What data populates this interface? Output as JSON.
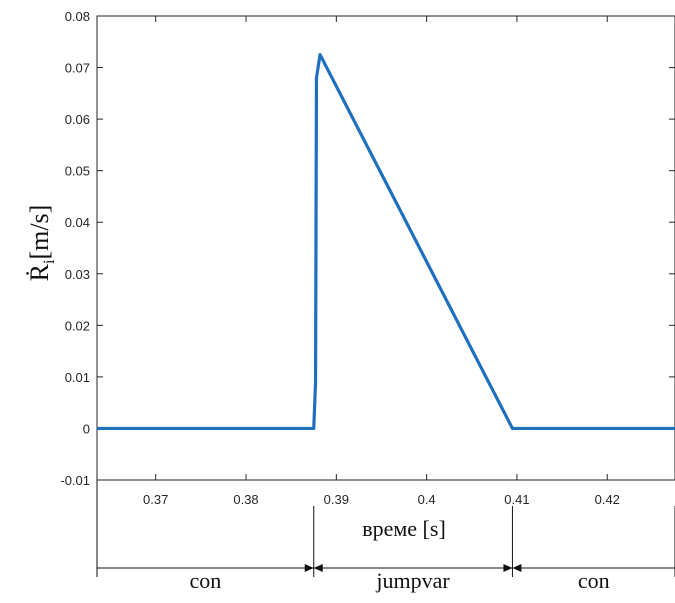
{
  "chart_data": {
    "type": "line",
    "xlabel": "време [s]",
    "ylabel": {
      "main": "Ṙ",
      "sub": "i",
      "unit": "[m/s]"
    },
    "xlim": [
      0.3635,
      0.4275
    ],
    "ylim": [
      -0.01,
      0.08
    ],
    "xticks": [
      0.37,
      0.38,
      0.39,
      0.4,
      0.41,
      0.42
    ],
    "xtick_labels": [
      "0.37",
      "0.38",
      "0.39",
      "0.4",
      "0.41",
      "0.42"
    ],
    "yticks": [
      -0.01,
      0,
      0.01,
      0.02,
      0.03,
      0.04,
      0.05,
      0.06,
      0.07,
      0.08
    ],
    "ytick_labels": [
      "-0.01",
      "0",
      "0.01",
      "0.02",
      "0.03",
      "0.04",
      "0.05",
      "0.06",
      "0.07",
      "0.08"
    ],
    "grid": false,
    "series": [
      {
        "color": "#1f6fbf",
        "points": [
          [
            0.3635,
            0.0
          ],
          [
            0.3875,
            0.0
          ],
          [
            0.3877,
            0.009
          ],
          [
            0.3878,
            0.068
          ],
          [
            0.3882,
            0.0725
          ],
          [
            0.4095,
            0.0
          ],
          [
            0.4275,
            0.0
          ]
        ]
      }
    ],
    "phases": [
      {
        "label": "con",
        "start": 0.3635,
        "end": 0.3875
      },
      {
        "label": "jumpvar",
        "start": 0.3875,
        "end": 0.4095
      },
      {
        "label": "con",
        "start": 0.4095,
        "end": 0.4275
      }
    ]
  }
}
